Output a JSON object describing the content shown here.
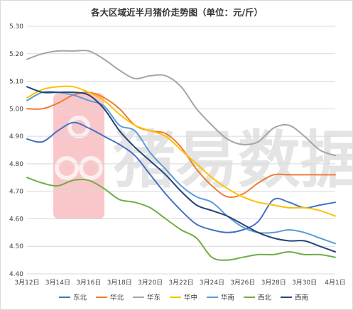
{
  "chart_data": {
    "type": "line",
    "title": "各大区域近半月猪价走势图（单位：元/斤）",
    "xlabel": "",
    "ylabel": "",
    "ylim": [
      4.4,
      5.3
    ],
    "yticks": [
      "4.40",
      "4.50",
      "4.60",
      "4.70",
      "4.80",
      "4.90",
      "5.00",
      "5.10",
      "5.20",
      "5.30"
    ],
    "x_tick_labels": [
      "3月12日",
      "3月14日",
      "3月16日",
      "3月18日",
      "3月20日",
      "3月22日",
      "3月24日",
      "3月26日",
      "3月28日",
      "3月30日",
      "4月1日"
    ],
    "n_points": 21,
    "grid": "horizontal",
    "legend_position": "bottom",
    "series": [
      {
        "name": "东北",
        "color": "#4472c4",
        "values": [
          4.89,
          4.88,
          4.92,
          4.95,
          4.93,
          4.9,
          4.87,
          4.83,
          4.76,
          4.69,
          4.63,
          4.58,
          4.56,
          4.55,
          4.56,
          4.59,
          4.67,
          4.66,
          4.64,
          4.65,
          4.66
        ]
      },
      {
        "name": "华北",
        "color": "#ed7d31",
        "values": [
          5.0,
          5.0,
          5.02,
          5.05,
          5.06,
          5.04,
          5.0,
          4.94,
          4.92,
          4.91,
          4.86,
          4.78,
          4.72,
          4.68,
          4.69,
          4.73,
          4.76,
          4.76,
          4.76,
          4.76,
          4.76
        ]
      },
      {
        "name": "华东",
        "color": "#a5a5a5",
        "values": [
          5.18,
          5.2,
          5.21,
          5.21,
          5.21,
          5.18,
          5.14,
          5.11,
          5.12,
          5.12,
          5.08,
          5.0,
          4.94,
          4.89,
          4.87,
          4.88,
          4.93,
          4.94,
          4.9,
          4.85,
          4.83
        ]
      },
      {
        "name": "华中",
        "color": "#ffc000",
        "values": [
          5.04,
          5.07,
          5.08,
          5.08,
          5.06,
          5.03,
          4.98,
          4.94,
          4.92,
          4.9,
          4.85,
          4.8,
          4.75,
          4.71,
          4.68,
          4.66,
          4.65,
          4.64,
          4.64,
          4.63,
          4.61
        ]
      },
      {
        "name": "华南",
        "color": "#5b9bd5",
        "values": [
          5.03,
          5.06,
          5.06,
          5.05,
          5.03,
          5.01,
          4.94,
          4.92,
          4.84,
          4.78,
          4.72,
          4.68,
          4.66,
          4.61,
          4.57,
          4.55,
          4.55,
          4.56,
          4.55,
          4.53,
          4.51
        ]
      },
      {
        "name": "西北",
        "color": "#70ad47",
        "values": [
          4.75,
          4.73,
          4.72,
          4.74,
          4.74,
          4.71,
          4.67,
          4.66,
          4.64,
          4.6,
          4.56,
          4.53,
          4.46,
          4.45,
          4.46,
          4.47,
          4.47,
          4.48,
          4.47,
          4.47,
          4.46
        ]
      },
      {
        "name": "西南",
        "color": "#264478",
        "values": [
          5.08,
          5.06,
          5.06,
          5.06,
          5.05,
          5.0,
          4.92,
          4.86,
          4.81,
          4.76,
          4.7,
          4.65,
          4.63,
          4.61,
          4.58,
          4.55,
          4.53,
          4.52,
          4.52,
          4.5,
          4.48
        ]
      }
    ]
  },
  "watermark": {
    "text": "猪易数据",
    "logo_color": "#e8212a"
  }
}
